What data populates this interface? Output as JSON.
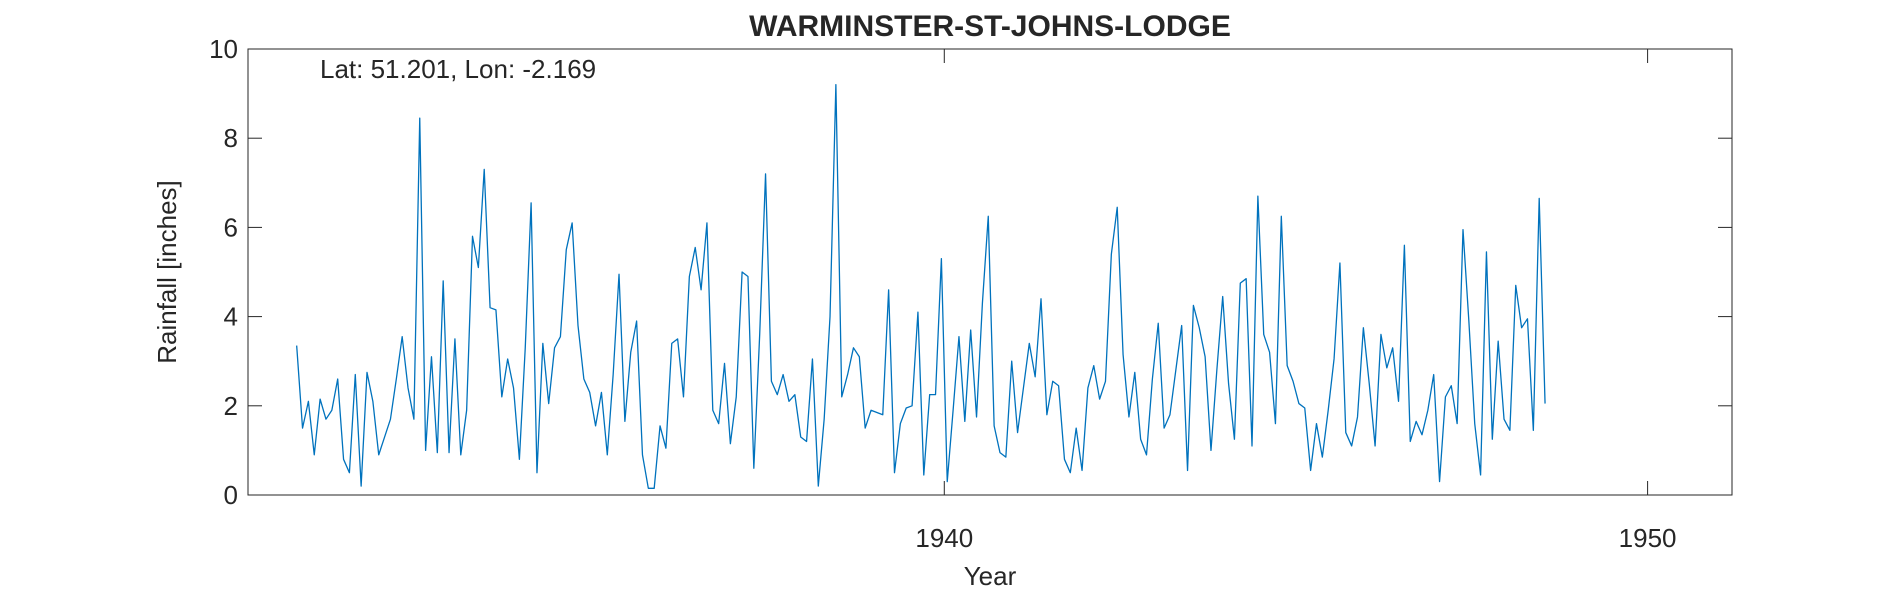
{
  "chart_data": {
    "type": "line",
    "title": "WARMINSTER-ST-JOHNS-LODGE",
    "annotation": "Lat: 51.201, Lon: -2.169",
    "xlabel": "Year",
    "ylabel": "Rainfall [inches]",
    "xlim": [
      1930.1,
      1951.2
    ],
    "ylim": [
      0,
      10
    ],
    "xticks": [
      1940,
      1950
    ],
    "xtick_labels": [
      "1940",
      "1950"
    ],
    "yticks": [
      0,
      2,
      4,
      6,
      8,
      10
    ],
    "ytick_labels": [
      "0",
      "2",
      "4",
      "6",
      "8",
      "10"
    ],
    "grid": false,
    "line_color": "#0072BD",
    "series": [
      {
        "start": 1930.792,
        "step": 0.0833333,
        "values": [
          3.35,
          1.5,
          2.1,
          0.9,
          2.15,
          1.7,
          1.9,
          2.6,
          0.8,
          0.5,
          2.7,
          0.2,
          2.75,
          2.1,
          0.9,
          1.3,
          1.7,
          2.6,
          3.55,
          2.4,
          1.7,
          8.45,
          1.0,
          3.1,
          0.95,
          4.8,
          0.95,
          3.5,
          0.9,
          1.9,
          5.8,
          5.1,
          7.3,
          4.2,
          4.15,
          2.2,
          3.05,
          2.4,
          0.8,
          3.3,
          6.55,
          0.5,
          3.4,
          2.05,
          3.3,
          3.55,
          5.5,
          6.1,
          3.8,
          2.6,
          2.3,
          1.55,
          2.3,
          0.9,
          2.7,
          4.95,
          1.65,
          3.2,
          3.9,
          0.9,
          0.15,
          0.15,
          1.55,
          1.05,
          3.4,
          3.5,
          2.2,
          4.9,
          5.55,
          4.6,
          6.1,
          1.9,
          1.6,
          2.95,
          1.15,
          2.2,
          5.0,
          4.9,
          0.6,
          3.6,
          7.2,
          2.55,
          2.25,
          2.7,
          2.1,
          2.25,
          1.3,
          1.2,
          3.05,
          0.2,
          1.7,
          4.0,
          9.2,
          2.2,
          2.7,
          3.3,
          3.1,
          1.5,
          1.9,
          1.85,
          1.8,
          4.6,
          0.5,
          1.6,
          1.95,
          2.0,
          4.1,
          0.45,
          2.25,
          2.25,
          5.3,
          0.3,
          1.9,
          3.55,
          1.65,
          3.7,
          1.75,
          4.3,
          6.25,
          1.55,
          0.95,
          0.85,
          3.0,
          1.4,
          2.4,
          3.4,
          2.65,
          4.4,
          1.8,
          2.55,
          2.45,
          0.8,
          0.5,
          1.5,
          0.55,
          2.4,
          2.9,
          2.15,
          2.55,
          5.4,
          6.45,
          3.15,
          1.75,
          2.75,
          1.25,
          0.9,
          2.6,
          3.85,
          1.5,
          1.8,
          2.8,
          3.8,
          0.55,
          4.25,
          3.75,
          3.1,
          1.0,
          2.8,
          4.45,
          2.5,
          1.25,
          4.75,
          4.85,
          1.1,
          6.7,
          3.6,
          3.2,
          1.6,
          6.25,
          2.9,
          2.55,
          2.05,
          1.95,
          0.55,
          1.6,
          0.85,
          1.9,
          3.05,
          5.2,
          1.4,
          1.1,
          1.75,
          3.75,
          2.5,
          1.1,
          3.6,
          2.85,
          3.3,
          2.1,
          5.6,
          1.2,
          1.65,
          1.35,
          1.9,
          2.7,
          0.3,
          2.2,
          2.45,
          1.6,
          5.95,
          3.9,
          1.6,
          0.45,
          5.45,
          1.25,
          3.45,
          1.7,
          1.45,
          4.7,
          3.75,
          3.95,
          1.45,
          6.65,
          2.05
        ]
      }
    ]
  }
}
